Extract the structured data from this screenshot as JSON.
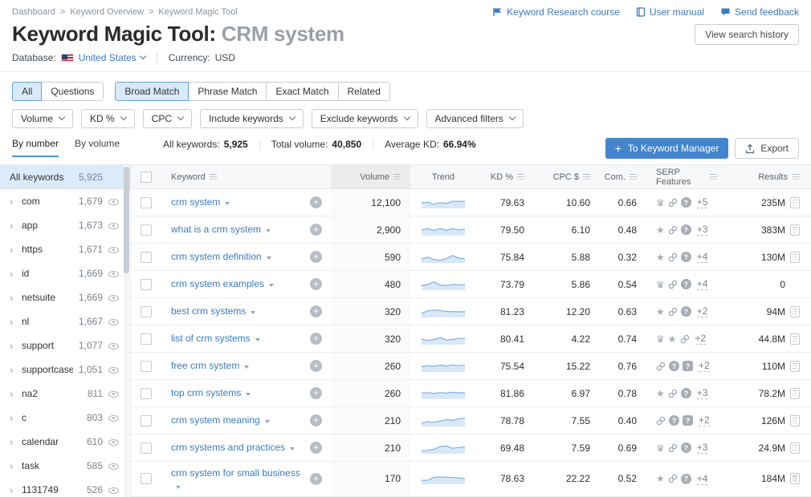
{
  "colors": {
    "accent_blue": "#4285cd",
    "link_blue": "#3a7bbf",
    "chip_sel_bg": "#d8e9fa",
    "chip_sel_border": "#6ba3d6",
    "side_sel_bg": "#dcebfa",
    "icon_gray": "#a6adb4"
  },
  "breadcrumb": {
    "separator": ">",
    "items": [
      "Dashboard",
      "Keyword Overview",
      "Keyword Magic Tool"
    ]
  },
  "top_links": [
    {
      "icon": "course-flag-icon",
      "label": "Keyword Research course"
    },
    {
      "icon": "user-manual-book-icon",
      "label": "User manual"
    },
    {
      "icon": "feedback-bubble-icon",
      "label": "Send feedback"
    }
  ],
  "header": {
    "title": "Keyword Magic Tool:",
    "query": "CRM system",
    "view_history_label": "View search history",
    "database_label": "Database:",
    "database_value": "United States",
    "currency_label": "Currency:",
    "currency_value": "USD"
  },
  "match_tabs": {
    "group1": [
      "All",
      "Questions"
    ],
    "group2": [
      "Broad Match",
      "Phrase Match",
      "Exact Match",
      "Related"
    ]
  },
  "filters": [
    "Volume",
    "KD %",
    "CPC",
    "Include keywords",
    "Exclude keywords",
    "Advanced filters"
  ],
  "view_tabs": [
    "By number",
    "By volume"
  ],
  "stats": [
    {
      "label": "All keywords:",
      "value": "5,925"
    },
    {
      "label": "Total volume:",
      "value": "40,850"
    },
    {
      "label": "Average KD:",
      "value": "66.94%"
    }
  ],
  "actions": {
    "keyword_manager": "To Keyword Manager",
    "export": "Export"
  },
  "sidebar": {
    "all": {
      "label": "All keywords",
      "count": "5,925"
    },
    "groups": [
      {
        "label": "com",
        "count": "1,679"
      },
      {
        "label": "app",
        "count": "1,673"
      },
      {
        "label": "https",
        "count": "1,671"
      },
      {
        "label": "id",
        "count": "1,669"
      },
      {
        "label": "netsuite",
        "count": "1,669"
      },
      {
        "label": "nl",
        "count": "1,667"
      },
      {
        "label": "support",
        "count": "1,077"
      },
      {
        "label": "supportcase",
        "count": "1,051"
      },
      {
        "label": "na2",
        "count": "811"
      },
      {
        "label": "c",
        "count": "803"
      },
      {
        "label": "calendar",
        "count": "610"
      },
      {
        "label": "task",
        "count": "585"
      },
      {
        "label": "1131749",
        "count": "526"
      }
    ]
  },
  "table": {
    "headers": [
      "Keyword",
      "Volume",
      "Trend",
      "KD %",
      "CPC $",
      "Com.",
      "SERP Features",
      "Results"
    ],
    "rows": [
      {
        "keyword": "crm system",
        "volume": "12,100",
        "kd": "79.63",
        "cpc": "10.60",
        "com": "0.66",
        "serp_icons": [
          "crown",
          "link",
          "question-circle"
        ],
        "serp_more": "+5",
        "results": "235M",
        "has_doc": true,
        "trend": [
          0.55,
          0.62,
          0.38,
          0.55,
          0.48,
          0.72,
          0.72,
          0.72
        ]
      },
      {
        "keyword": "what is a crm system",
        "volume": "2,900",
        "kd": "79.50",
        "cpc": "6.10",
        "com": "0.48",
        "serp_icons": [
          "star",
          "link",
          "question-circle"
        ],
        "serp_more": "+3",
        "results": "383M",
        "has_doc": true,
        "trend": [
          0.55,
          0.72,
          0.5,
          0.72,
          0.5,
          0.7,
          0.55,
          0.65
        ]
      },
      {
        "keyword": "crm system definition",
        "volume": "590",
        "kd": "75.84",
        "cpc": "5.88",
        "com": "0.32",
        "serp_icons": [
          "star",
          "link",
          "question-circle"
        ],
        "serp_more": "+4",
        "results": "130M",
        "has_doc": true,
        "trend": [
          0.35,
          0.55,
          0.28,
          0.22,
          0.4,
          0.75,
          0.45,
          0.4
        ]
      },
      {
        "keyword": "crm system examples",
        "volume": "480",
        "kd": "73.79",
        "cpc": "5.86",
        "com": "0.54",
        "serp_icons": [
          "crown",
          "link",
          "question-circle"
        ],
        "serp_more": "+4",
        "results": "0",
        "has_doc": false,
        "trend": [
          0.45,
          0.55,
          0.85,
          0.5,
          0.45,
          0.55,
          0.5,
          0.55
        ]
      },
      {
        "keyword": "best crm systems",
        "volume": "320",
        "kd": "81.23",
        "cpc": "12.20",
        "com": "0.63",
        "serp_icons": [
          "star",
          "link",
          "question-circle"
        ],
        "serp_more": "+2",
        "results": "94M",
        "has_doc": true,
        "trend": [
          0.4,
          0.65,
          0.75,
          0.7,
          0.6,
          0.55,
          0.55,
          0.55
        ]
      },
      {
        "keyword": "list of crm systems",
        "volume": "320",
        "kd": "80.41",
        "cpc": "4.22",
        "com": "0.74",
        "serp_icons": [
          "crown",
          "star",
          "link"
        ],
        "serp_more": "+2",
        "results": "44.8M",
        "has_doc": true,
        "trend": [
          0.55,
          0.38,
          0.5,
          0.7,
          0.45,
          0.5,
          0.65,
          0.6
        ]
      },
      {
        "keyword": "free crm system",
        "volume": "260",
        "kd": "75.54",
        "cpc": "15.22",
        "com": "0.76",
        "serp_icons": [
          "link",
          "question-circle",
          "question-square"
        ],
        "serp_more": "+2",
        "results": "110M",
        "has_doc": true,
        "trend": [
          0.5,
          0.62,
          0.55,
          0.68,
          0.58,
          0.7,
          0.62,
          0.7
        ]
      },
      {
        "keyword": "top crm systems",
        "volume": "260",
        "kd": "81.86",
        "cpc": "6.97",
        "com": "0.78",
        "serp_icons": [
          "star",
          "link",
          "question-circle"
        ],
        "serp_more": "+3",
        "results": "78.2M",
        "has_doc": true,
        "trend": [
          0.6,
          0.66,
          0.55,
          0.66,
          0.6,
          0.7,
          0.64,
          0.64
        ]
      },
      {
        "keyword": "crm system meaning",
        "volume": "210",
        "kd": "78.78",
        "cpc": "7.55",
        "com": "0.40",
        "serp_icons": [
          "link",
          "question-circle",
          "question-square"
        ],
        "serp_more": "+2",
        "results": "126M",
        "has_doc": true,
        "trend": [
          0.3,
          0.45,
          0.38,
          0.52,
          0.68,
          0.6,
          0.78,
          0.85
        ]
      },
      {
        "keyword": "crm systems and practices",
        "volume": "210",
        "kd": "69.48",
        "cpc": "7.59",
        "com": "0.69",
        "serp_icons": [
          "crown",
          "link",
          "question-circle"
        ],
        "serp_more": "+3",
        "results": "24.9M",
        "has_doc": true,
        "trend": [
          0.25,
          0.3,
          0.42,
          0.72,
          0.78,
          0.52,
          0.62,
          0.68
        ]
      },
      {
        "keyword": "crm system for small business",
        "volume": "170",
        "kd": "78.63",
        "cpc": "22.22",
        "com": "0.52",
        "serp_icons": [
          "star",
          "link",
          "question-circle"
        ],
        "serp_more": "+4",
        "results": "184M",
        "has_doc": true,
        "trend": [
          0.35,
          0.35,
          0.68,
          0.72,
          0.7,
          0.68,
          0.62,
          0.55
        ]
      }
    ]
  }
}
